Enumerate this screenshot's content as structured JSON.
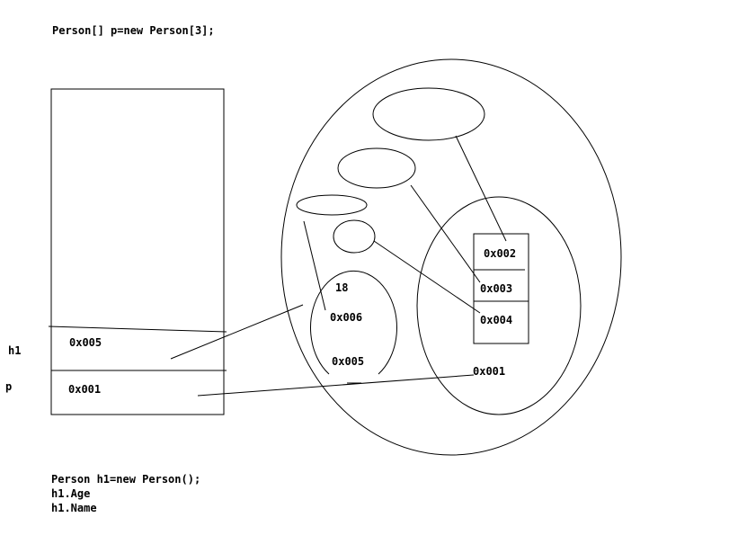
{
  "code": {
    "array_decl": "Person[] p=new Person[3];",
    "obj_decl": "Person h1=new Person();",
    "age_access": "h1.Age",
    "name_access": "h1.Name"
  },
  "stack": {
    "var_h1": "h1",
    "var_p": "p",
    "cell_h1_value": "0x005",
    "cell_p_value": "0x001"
  },
  "heap": {
    "object": {
      "age_value": "18",
      "name_ref": "0x006",
      "address": "0x005"
    },
    "array": {
      "slot_1": "0x002",
      "slot_2": "0x003",
      "slot_3": "0x004",
      "address": "0x001"
    }
  }
}
